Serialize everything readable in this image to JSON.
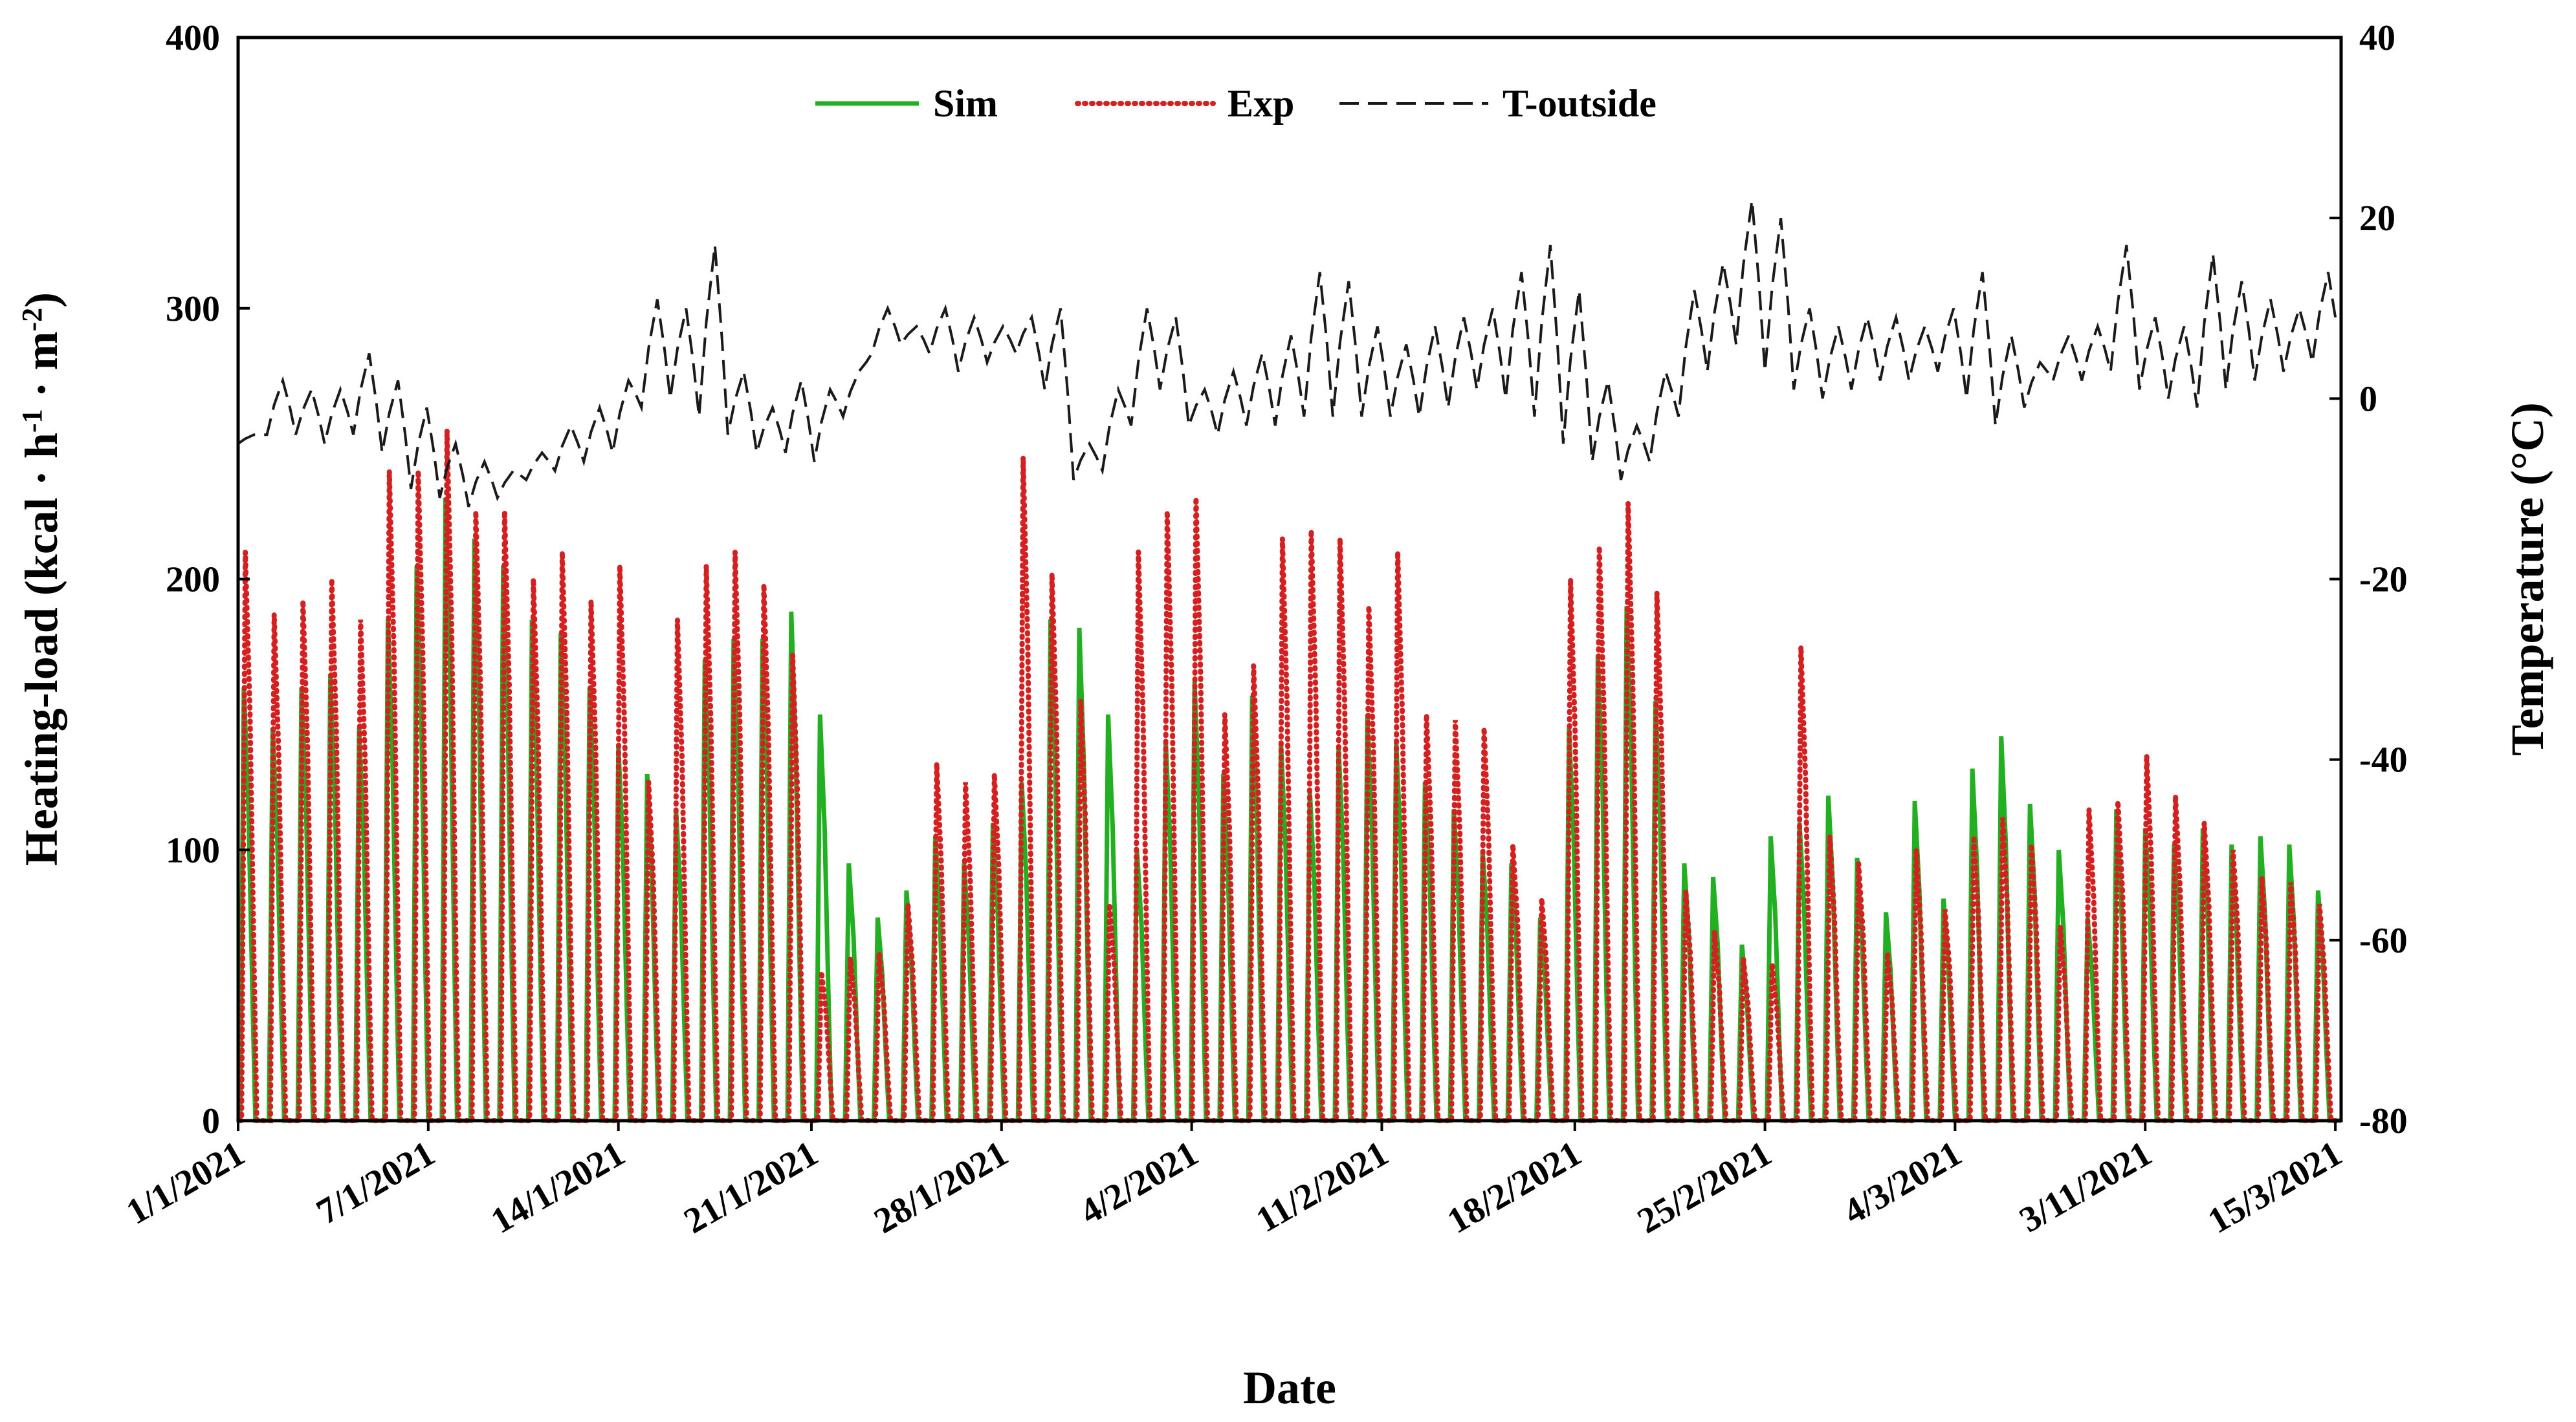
{
  "chart_data": {
    "type": "line",
    "title": "",
    "xlabel": "Date",
    "ylabel": "Heating-load (kcal · h⁻¹ · m⁻²)",
    "ylabel_parts": [
      "Heating-load (kcal · h",
      "-1",
      " · m",
      "-2",
      ")"
    ],
    "y2label": "Temperature (°C)",
    "ylim": [
      0,
      400
    ],
    "y2lim": [
      -80,
      40
    ],
    "y_ticks": [
      0,
      100,
      200,
      300,
      400
    ],
    "y2_ticks": [
      -80,
      -60,
      -40,
      -20,
      0,
      20,
      40
    ],
    "x_range_days": [
      0,
      73
    ],
    "x_tick_days": [
      0,
      6.6,
      13.2,
      19.9,
      26.5,
      33.1,
      39.7,
      46.4,
      53.0,
      59.6,
      66.2,
      72.8
    ],
    "x_tick_labels": [
      "1/1/2021",
      "7/1/2021",
      "14/1/2021",
      "21/1/2021",
      "28/1/2021",
      "4/2/2021",
      "11/2/2021",
      "18/2/2021",
      "25/2/2021",
      "4/3/2021",
      "3/11/2021",
      "15/3/2021"
    ],
    "legend": {
      "position": "top-center",
      "entries": [
        "Sim",
        "Exp",
        "T-outside"
      ]
    },
    "colors": {
      "sim": "#22b022",
      "exp": "#d42020",
      "toutside": "#1a1a1a"
    },
    "series": [
      {
        "name": "Sim",
        "axis": "left",
        "style": "solid",
        "note": "daily peak heating load in kcal/h/m2, one cycle per day (day 0..72)",
        "daily_peaks": [
          160,
          145,
          160,
          165,
          145,
          185,
          205,
          230,
          215,
          205,
          185,
          180,
          160,
          138,
          128,
          115,
          170,
          178,
          178,
          188,
          150,
          95,
          75,
          85,
          105,
          95,
          110,
          125,
          185,
          182,
          150,
          100,
          140,
          162,
          128,
          157,
          140,
          122,
          138,
          150,
          140,
          125,
          115,
          100,
          95,
          75,
          145,
          172,
          190,
          155,
          95,
          90,
          65,
          105,
          110,
          120,
          97,
          77,
          118,
          82,
          130,
          142,
          117,
          100,
          75,
          115,
          108,
          102,
          108,
          102,
          105,
          102,
          85
        ]
      },
      {
        "name": "Exp",
        "axis": "left",
        "style": "dotted",
        "note": "daily peak heating load in kcal/h/m2, one cycle per day (day 0..72)",
        "daily_peaks": [
          210,
          187,
          192,
          200,
          185,
          240,
          240,
          255,
          225,
          225,
          200,
          210,
          192,
          205,
          125,
          185,
          205,
          210,
          198,
          172,
          55,
          60,
          62,
          80,
          132,
          125,
          128,
          245,
          202,
          155,
          80,
          210,
          225,
          230,
          150,
          168,
          215,
          218,
          215,
          190,
          210,
          150,
          148,
          145,
          102,
          82,
          200,
          212,
          228,
          195,
          85,
          70,
          60,
          58,
          175,
          105,
          95,
          62,
          100,
          78,
          105,
          112,
          102,
          72,
          115,
          118,
          135,
          120,
          110,
          100,
          90,
          88,
          80
        ]
      },
      {
        "name": "T-outside",
        "axis": "right",
        "style": "dashed",
        "note": "outside temperature in °C, daily min/max sampled every 24 h (day 0..72)",
        "daily_max": [
          -4,
          2,
          1,
          1,
          5,
          2,
          -1,
          -5,
          -7,
          -8,
          -6,
          -3,
          -1,
          2,
          11,
          10,
          17,
          3,
          -1,
          2,
          1,
          3,
          10,
          8,
          10,
          9,
          8,
          9,
          10,
          -5,
          1,
          10,
          9,
          1,
          3,
          5,
          7,
          14,
          13,
          8,
          6,
          8,
          9,
          10,
          14,
          17,
          12,
          2,
          -3,
          3,
          12,
          15,
          22,
          20,
          10,
          8,
          9,
          9,
          8,
          10,
          14,
          7,
          4,
          7,
          8,
          17,
          9,
          8,
          16,
          13,
          11,
          10,
          14
        ],
        "daily_min": [
          -5,
          -4,
          -4,
          -5,
          -4,
          -6,
          -10,
          -11,
          -12,
          -11,
          -9,
          -8,
          -7,
          -6,
          -1,
          0,
          -2,
          -4,
          -6,
          -6,
          -7,
          -2,
          5,
          6,
          5,
          3,
          4,
          5,
          1,
          -9,
          -8,
          -3,
          1,
          -3,
          -4,
          -3,
          -3,
          -2,
          -2,
          -2,
          -2,
          -2,
          -1,
          1,
          0,
          -2,
          -5,
          -7,
          -9,
          -7,
          -2,
          3,
          6,
          3,
          1,
          0,
          1,
          2,
          2,
          3,
          0,
          -3,
          -1,
          2,
          2,
          3,
          1,
          0,
          -1,
          1,
          2,
          3,
          4
        ]
      }
    ]
  }
}
